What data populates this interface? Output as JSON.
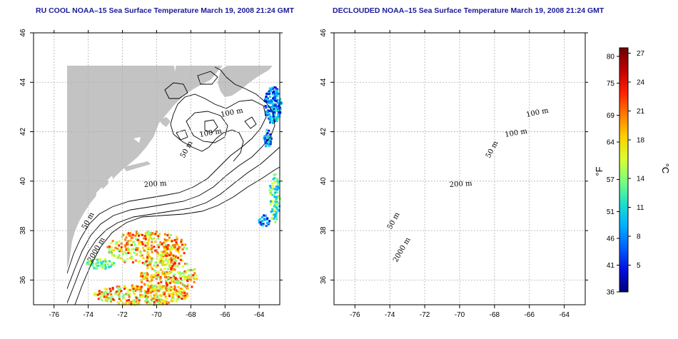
{
  "panels": [
    {
      "title": "RU COOL NOAA–15 Sea Surface Temperature March 19, 2008 21:24 GMT"
    },
    {
      "title": "DECLOUDED NOAA–15 Sea Surface Temperature March 19, 2008 21:24 GMT"
    }
  ],
  "map": {
    "lon_ticks": [
      "-76",
      "-74",
      "-72",
      "-70",
      "-68",
      "-66",
      "-64"
    ],
    "lon_values": [
      -76,
      -74,
      -72,
      -70,
      -68,
      -66,
      -64
    ],
    "lat_ticks": [
      "46",
      "44",
      "42",
      "40",
      "38",
      "36"
    ],
    "lat_values": [
      46,
      44,
      42,
      40,
      38,
      36
    ],
    "lon_range": [
      -77.2,
      -62.8
    ],
    "lat_range": [
      35,
      46
    ],
    "land_color": "#c3c3c3",
    "grid": "dotted"
  },
  "contour_labels": {
    "l100a": "100 m",
    "l100b": "100 m",
    "l50a": "50 m",
    "l200": "200 m",
    "l50b": "50 m",
    "l2000": "2000 m"
  },
  "colorbar": {
    "fahrenheit_ticks": [
      "80",
      "75",
      "69",
      "64",
      "57",
      "51",
      "46",
      "41",
      "36"
    ],
    "fahrenheit_values": [
      80,
      75,
      69,
      64,
      57,
      51,
      46,
      41,
      36
    ],
    "celsius_ticks": [
      "27",
      "24",
      "21",
      "18",
      "14",
      "11",
      "8",
      "5"
    ],
    "celsius_values": [
      27,
      24,
      21,
      18,
      14,
      11,
      8,
      5
    ],
    "f_label": "°F",
    "c_label": "°C",
    "range_f": [
      36,
      81.6
    ],
    "colors": [
      "#6e0000",
      "#c00000",
      "#ff2000",
      "#ff7a00",
      "#ffd000",
      "#d8ff30",
      "#7cff7c",
      "#20e0c8",
      "#00b0ff",
      "#0060ff",
      "#0010e0",
      "#00007a"
    ]
  }
}
